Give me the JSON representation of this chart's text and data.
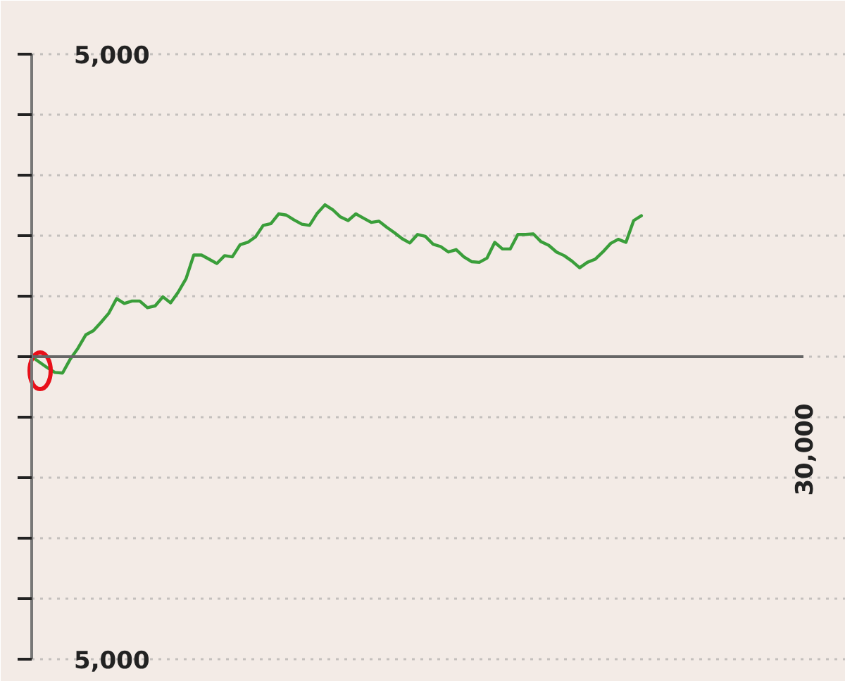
{
  "chart_data": {
    "type": "line",
    "color": "#3a9e3a",
    "categories": [
      null,
      null,
      null,
      null,
      null,
      null,
      null,
      null,
      null,
      null,
      null,
      null,
      null,
      null,
      null,
      null,
      null,
      null,
      null,
      null,
      null,
      null,
      null,
      null,
      null,
      null,
      null,
      null,
      null,
      null,
      null,
      null,
      null,
      null,
      null,
      null,
      null,
      null,
      null,
      null,
      null,
      null,
      null,
      null,
      null,
      null,
      null,
      null,
      null,
      null,
      null,
      null,
      null,
      null,
      null,
      null,
      null,
      null,
      null,
      null,
      null,
      null,
      null,
      null,
      null,
      null,
      null,
      null,
      null,
      null,
      null,
      null,
      null,
      null,
      null,
      null,
      null,
      null,
      null,
      null,
      null,
      null,
      null,
      null,
      null,
      null,
      null,
      null,
      null,
      null,
      null,
      null,
      null,
      null,
      null,
      null,
      null,
      null,
      null,
      null,
      "30,000"
    ],
    "values": [
      0,
      -90,
      -180,
      -260,
      -270,
      -40,
      140,
      360,
      430,
      570,
      720,
      960,
      880,
      920,
      920,
      810,
      840,
      990,
      890,
      1070,
      1290,
      1680,
      1680,
      1610,
      1540,
      1670,
      1650,
      1850,
      1890,
      1980,
      2170,
      2200,
      2360,
      2340,
      2260,
      2190,
      2170,
      2370,
      2510,
      2430,
      2310,
      2250,
      2360,
      2290,
      2220,
      2240,
      2140,
      2050,
      1950,
      1880,
      2020,
      1990,
      1860,
      1820,
      1730,
      1770,
      1650,
      1570,
      1560,
      1630,
      1890,
      1780,
      1780,
      2020,
      2020,
      2030,
      1900,
      1840,
      1730,
      1670,
      1580,
      1470,
      1560,
      1610,
      1730,
      1870,
      1940,
      1890,
      2250,
      2330,
      null,
      null,
      null,
      null,
      null,
      null,
      null,
      null,
      null,
      null,
      null,
      null,
      null,
      null,
      null,
      null,
      null,
      null,
      null,
      null,
      null
    ],
    "ylim": [
      -5000,
      5000
    ],
    "yticks": [
      {
        "value": 5000,
        "label": "5,000"
      },
      {
        "value": 4000,
        "label": null
      },
      {
        "value": 3000,
        "label": null
      },
      {
        "value": 2000,
        "label": null
      },
      {
        "value": 1000,
        "label": null
      },
      {
        "value": 0,
        "label": null
      },
      {
        "value": -1000,
        "label": null
      },
      {
        "value": -2000,
        "label": null
      },
      {
        "value": -3000,
        "label": null
      },
      {
        "value": -4000,
        "label": null
      },
      {
        "value": -5000,
        "label": "5,000"
      }
    ],
    "grid": "y"
  }
}
